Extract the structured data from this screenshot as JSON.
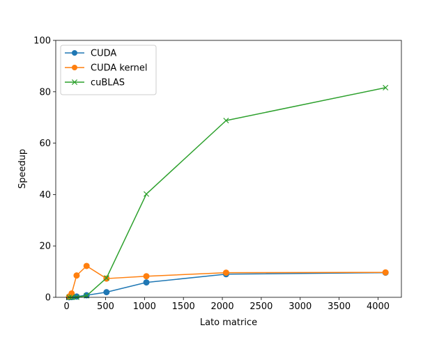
{
  "chart_data": {
    "type": "line",
    "title": "",
    "xlabel": "Lato matrice",
    "ylabel": "Speedup",
    "xlim": [
      -140,
      4300
    ],
    "ylim": [
      0,
      100
    ],
    "xticks": [
      0,
      500,
      1000,
      1500,
      2000,
      2500,
      3000,
      3500,
      4000
    ],
    "yticks": [
      0,
      20,
      40,
      60,
      80,
      100
    ],
    "grid": false,
    "legend_position": "top-left",
    "series": [
      {
        "name": "CUDA",
        "color": "#1f77b4",
        "marker": "circle",
        "x": [
          32,
          64,
          128,
          256,
          512,
          1024,
          2048,
          4096
        ],
        "y": [
          0.05,
          0.1,
          0.3,
          0.8,
          2.0,
          5.8,
          9.0,
          9.6
        ]
      },
      {
        "name": "CUDA kernel",
        "color": "#ff7f0e",
        "marker": "circle",
        "x": [
          32,
          64,
          128,
          256,
          512,
          1024,
          2048,
          4096
        ],
        "y": [
          0.3,
          1.5,
          8.5,
          12.2,
          7.3,
          8.2,
          9.6,
          9.7
        ]
      },
      {
        "name": "cuBLAS",
        "color": "#2ca02c",
        "marker": "x",
        "x": [
          32,
          64,
          128,
          256,
          512,
          1024,
          2048,
          4096
        ],
        "y": [
          0.0,
          0.0,
          0.05,
          0.6,
          7.5,
          40.2,
          68.8,
          81.6
        ]
      }
    ]
  }
}
